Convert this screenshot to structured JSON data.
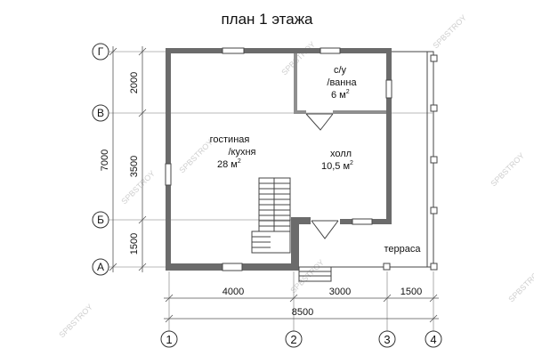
{
  "title": "план 1 этажа",
  "watermark": "SPBSTROY",
  "axes": {
    "horizontal": [
      "Г",
      "В",
      "Б",
      "А"
    ],
    "vertical": [
      "1",
      "2",
      "3",
      "4"
    ]
  },
  "dimensions": {
    "left_outer": "7000",
    "left_segments": [
      "2000",
      "3500",
      "1500"
    ],
    "bottom_segments": [
      "4000",
      "3000",
      "1500"
    ],
    "bottom_total": "8500"
  },
  "rooms": {
    "bath": {
      "line1": "с/у",
      "line2": "/ванна",
      "area": "6 м",
      "sup": "2"
    },
    "living": {
      "line1": "гостиная",
      "line2": "/кухня",
      "area": "28 м",
      "sup": "2"
    },
    "hall": {
      "line1": "холл",
      "area": "10,5 м",
      "sup": "2"
    },
    "terrace": {
      "line1": "терраса"
    }
  }
}
